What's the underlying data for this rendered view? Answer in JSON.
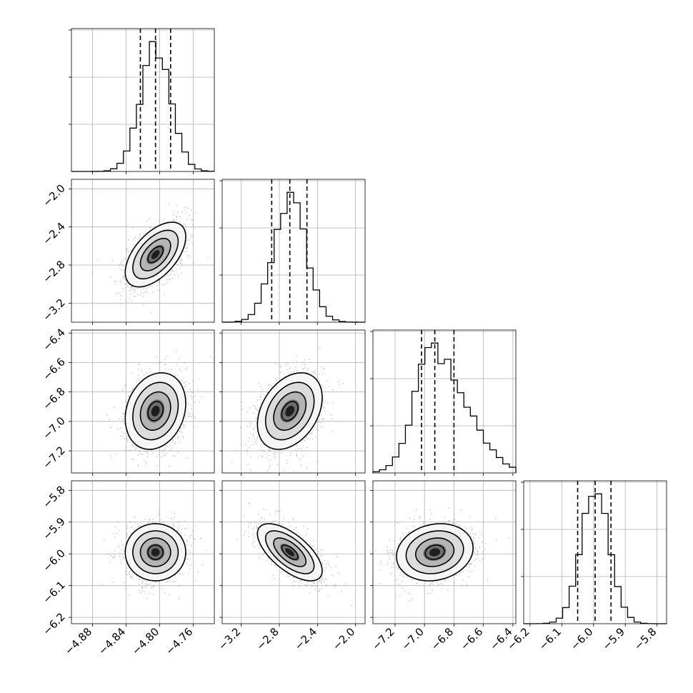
{
  "chart_data": {
    "type": "corner",
    "grid": true,
    "quantile_lines": "dashed",
    "parameters": [
      {
        "mean": -4.805,
        "sd": 0.018,
        "range": [
          -4.905,
          -4.735
        ],
        "ticks": [
          -4.88,
          -4.84,
          -4.8,
          -4.76
        ],
        "tick_labels": [
          "−4.88",
          "−4.84",
          "−4.80",
          "−4.76"
        ],
        "quantiles": [
          -4.823,
          -4.805,
          -4.787
        ]
      },
      {
        "mean": -2.69,
        "sd": 0.17,
        "range": [
          -3.4,
          -1.9
        ],
        "ticks": [
          -3.2,
          -2.8,
          -2.4,
          -2.0
        ],
        "tick_labels": [
          "−3.2",
          "−2.8",
          "−2.4",
          "−2.0"
        ],
        "quantiles": [
          -2.88,
          -2.69,
          -2.51
        ]
      },
      {
        "mean": -6.93,
        "sd": 0.13,
        "range": [
          -7.35,
          -6.38
        ],
        "ticks": [
          -7.2,
          -7.0,
          -6.8,
          -6.6,
          -6.4
        ],
        "tick_labels": [
          "−7.2",
          "−7.0",
          "−6.8",
          "−6.6",
          "−6.4"
        ],
        "quantiles": [
          -7.02,
          -6.93,
          -6.8
        ]
      },
      {
        "mean": -5.995,
        "sd": 0.045,
        "range": [
          -6.22,
          -5.77
        ],
        "ticks": [
          -6.2,
          -6.1,
          -6.0,
          -5.9,
          -5.8
        ],
        "tick_labels": [
          "−6.2",
          "−6.1",
          "−6.0",
          "−5.9",
          "−5.8"
        ],
        "quantiles": [
          -6.05,
          -5.995,
          -5.945
        ]
      }
    ],
    "correlations": [
      {
        "row": 1,
        "col": 0,
        "rho": 0.55
      },
      {
        "row": 2,
        "col": 0,
        "rho": 0.2
      },
      {
        "row": 2,
        "col": 1,
        "rho": 0.35
      },
      {
        "row": 3,
        "col": 0,
        "rho": 0.0
      },
      {
        "row": 3,
        "col": 1,
        "rho": -0.65
      },
      {
        "row": 3,
        "col": 2,
        "rho": 0.15
      }
    ],
    "contour_levels_sigma": [
      0.5,
      1.0,
      1.5,
      2.0
    ],
    "colors": {
      "scatter": "#555555",
      "contour": "#000000",
      "hist": "#000000",
      "grid": "#b0b0b0"
    }
  }
}
